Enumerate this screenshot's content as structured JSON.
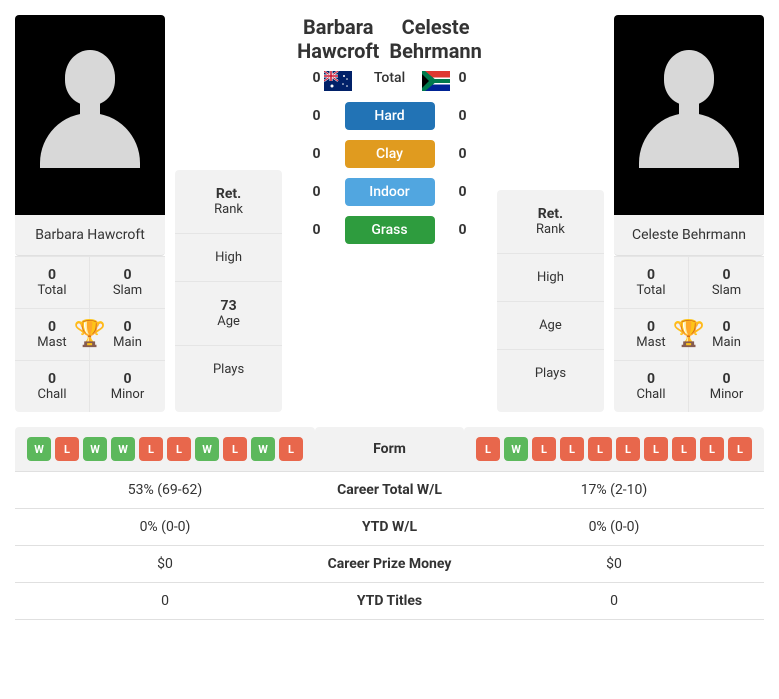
{
  "player1": {
    "name": "Barbara Hawcroft",
    "flag": "au",
    "stats": {
      "total": {
        "value": "0",
        "label": "Total"
      },
      "slam": {
        "value": "0",
        "label": "Slam"
      },
      "mast": {
        "value": "0",
        "label": "Mast"
      },
      "main": {
        "value": "0",
        "label": "Main"
      },
      "chall": {
        "value": "0",
        "label": "Chall"
      },
      "minor": {
        "value": "0",
        "label": "Minor"
      }
    },
    "info": {
      "rank_status": "Ret.",
      "rank_label": "Rank",
      "high_label": "High",
      "high_value": "",
      "age_value": "73",
      "age_label": "Age",
      "plays_label": "Plays",
      "plays_value": ""
    },
    "form": [
      "W",
      "L",
      "W",
      "W",
      "L",
      "L",
      "W",
      "L",
      "W",
      "L"
    ],
    "career_wl": "53% (69-62)",
    "ytd_wl": "0% (0-0)",
    "prize": "$0",
    "ytd_titles": "0"
  },
  "player2": {
    "name": "Celeste Behrmann",
    "flag": "za",
    "stats": {
      "total": {
        "value": "0",
        "label": "Total"
      },
      "slam": {
        "value": "0",
        "label": "Slam"
      },
      "mast": {
        "value": "0",
        "label": "Mast"
      },
      "main": {
        "value": "0",
        "label": "Main"
      },
      "chall": {
        "value": "0",
        "label": "Chall"
      },
      "minor": {
        "value": "0",
        "label": "Minor"
      }
    },
    "info": {
      "rank_status": "Ret.",
      "rank_label": "Rank",
      "high_label": "High",
      "high_value": "",
      "age_value": "",
      "age_label": "Age",
      "plays_label": "Plays",
      "plays_value": ""
    },
    "form": [
      "L",
      "W",
      "L",
      "L",
      "L",
      "L",
      "L",
      "L",
      "L",
      "L"
    ],
    "career_wl": "17% (2-10)",
    "ytd_wl": "0% (0-0)",
    "prize": "$0",
    "ytd_titles": "0"
  },
  "surfaces": {
    "total": {
      "label": "Total",
      "p1": "0",
      "p2": "0",
      "color": ""
    },
    "hard": {
      "label": "Hard",
      "p1": "0",
      "p2": "0",
      "color": "#2273b5"
    },
    "clay": {
      "label": "Clay",
      "p1": "0",
      "p2": "0",
      "color": "#e09b1f"
    },
    "indoor": {
      "label": "Indoor",
      "p1": "0",
      "p2": "0",
      "color": "#51a6e0"
    },
    "grass": {
      "label": "Grass",
      "p1": "0",
      "p2": "0",
      "color": "#2e9c3e"
    }
  },
  "table_labels": {
    "form": "Form",
    "career_wl": "Career Total W/L",
    "ytd_wl": "YTD W/L",
    "prize": "Career Prize Money",
    "ytd_titles": "YTD Titles"
  },
  "colors": {
    "form_w": "#5cb85c",
    "form_l": "#e8674c",
    "trophy": "#4a90d9",
    "bg_grey": "#f2f2f2"
  }
}
